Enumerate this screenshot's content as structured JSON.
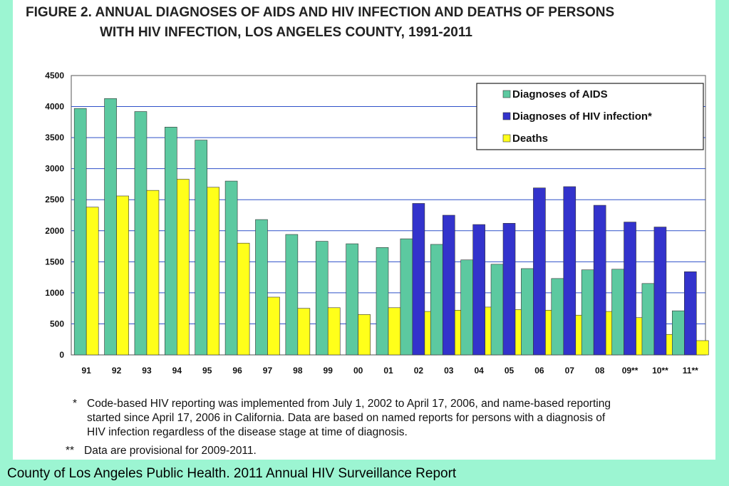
{
  "title_line1": "FIGURE 2. ANNUAL DIAGNOSES OF AIDS AND HIV INFECTION AND DEATHS OF PERSONS",
  "title_line2": "WITH HIV INFECTION, LOS ANGELES COUNTY, 1991-2011",
  "chart_data": {
    "type": "bar",
    "categories": [
      "91",
      "92",
      "93",
      "94",
      "95",
      "96",
      "97",
      "98",
      "99",
      "00",
      "01",
      "02",
      "03",
      "04",
      "05",
      "06",
      "07",
      "08",
      "09**",
      "10**",
      "11**"
    ],
    "series": [
      {
        "name": "Diagnoses of AIDS",
        "color": "#5cc9a0",
        "values": [
          3970,
          4130,
          3920,
          3670,
          3460,
          2800,
          2180,
          1940,
          1830,
          1790,
          1730,
          1870,
          1780,
          1530,
          1460,
          1390,
          1230,
          1370,
          1380,
          1150,
          710
        ]
      },
      {
        "name": "Diagnoses of HIV infection*",
        "color": "#3333cc",
        "values": [
          null,
          null,
          null,
          null,
          null,
          null,
          null,
          null,
          null,
          null,
          null,
          2440,
          2250,
          2100,
          2120,
          2690,
          2710,
          2410,
          2140,
          2060,
          1340
        ]
      },
      {
        "name": "Deaths",
        "color": "#ffff1a",
        "values": [
          2380,
          2560,
          2650,
          2830,
          2700,
          1800,
          930,
          750,
          760,
          650,
          760,
          700,
          720,
          770,
          730,
          720,
          640,
          700,
          600,
          330,
          230
        ]
      }
    ],
    "ylim": [
      0,
      4500
    ],
    "yticks": [
      "0",
      "500",
      "1000",
      "1500",
      "2000",
      "2500",
      "3000",
      "3500",
      "4000",
      "4500"
    ],
    "grid": true,
    "legend_position": "top-right"
  },
  "notes": [
    {
      "mark": "*",
      "lines": [
        "Code-based HIV reporting was implemented from July 1, 2002 to April 17, 2006, and name-based reporting",
        "started since April 17, 2006 in California.  Data are based on named reports for persons with a diagnosis of",
        "HIV infection regardless of the disease stage at time of diagnosis."
      ]
    },
    {
      "mark": "**",
      "lines": [
        "Data are provisional for 2009-2011."
      ]
    }
  ],
  "footer": "County of Los Angeles Public Health. 2011 Annual HIV Surveillance Report"
}
